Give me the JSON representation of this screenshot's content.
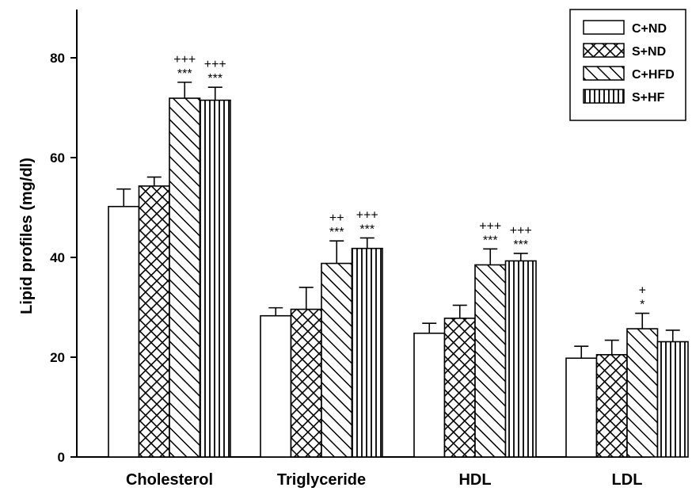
{
  "chart_data": {
    "type": "bar",
    "title": "",
    "xlabel": "",
    "ylabel": "Lipid profiles (mg/dl)",
    "ylim": [
      0,
      90
    ],
    "yticks": [
      "0",
      "20",
      "40",
      "60",
      "80"
    ],
    "categories": [
      "Cholesterol",
      "Triglyceride",
      "HDL",
      "LDL"
    ],
    "legend_position": "top-right",
    "series": [
      {
        "name": "C+ND",
        "pattern": "empty",
        "values": [
          50.2,
          28.3,
          24.8,
          19.8
        ],
        "errors": [
          3.5,
          1.6,
          2.0,
          2.4
        ],
        "annotations": [
          "",
          "",
          "",
          ""
        ]
      },
      {
        "name": "S+ND",
        "pattern": "crosshatch",
        "values": [
          54.3,
          29.6,
          27.8,
          20.5
        ],
        "errors": [
          1.8,
          4.4,
          2.6,
          2.9
        ],
        "annotations": [
          "",
          "",
          "",
          ""
        ]
      },
      {
        "name": "C+HFD",
        "pattern": "diagonal-down",
        "values": [
          71.9,
          38.8,
          38.5,
          25.7
        ],
        "errors": [
          3.2,
          4.5,
          3.2,
          3.1
        ],
        "annotations": [
          [
            "+++",
            "***"
          ],
          [
            "++",
            "***"
          ],
          [
            "+++",
            "***"
          ],
          [
            "+",
            "*"
          ]
        ]
      },
      {
        "name": "S+HF",
        "pattern": "vertical",
        "values": [
          71.5,
          41.8,
          39.3,
          23.1
        ],
        "errors": [
          2.6,
          2.1,
          1.5,
          2.3
        ],
        "annotations": [
          [
            "+++",
            "***"
          ],
          [
            "+++",
            "***"
          ],
          [
            "+++",
            "***"
          ],
          [
            "",
            ""
          ]
        ]
      }
    ]
  },
  "colors": {
    "axis": "#000000",
    "bar_fill": "#ffffff",
    "bar_stroke": "#000000",
    "background": "#ffffff"
  }
}
